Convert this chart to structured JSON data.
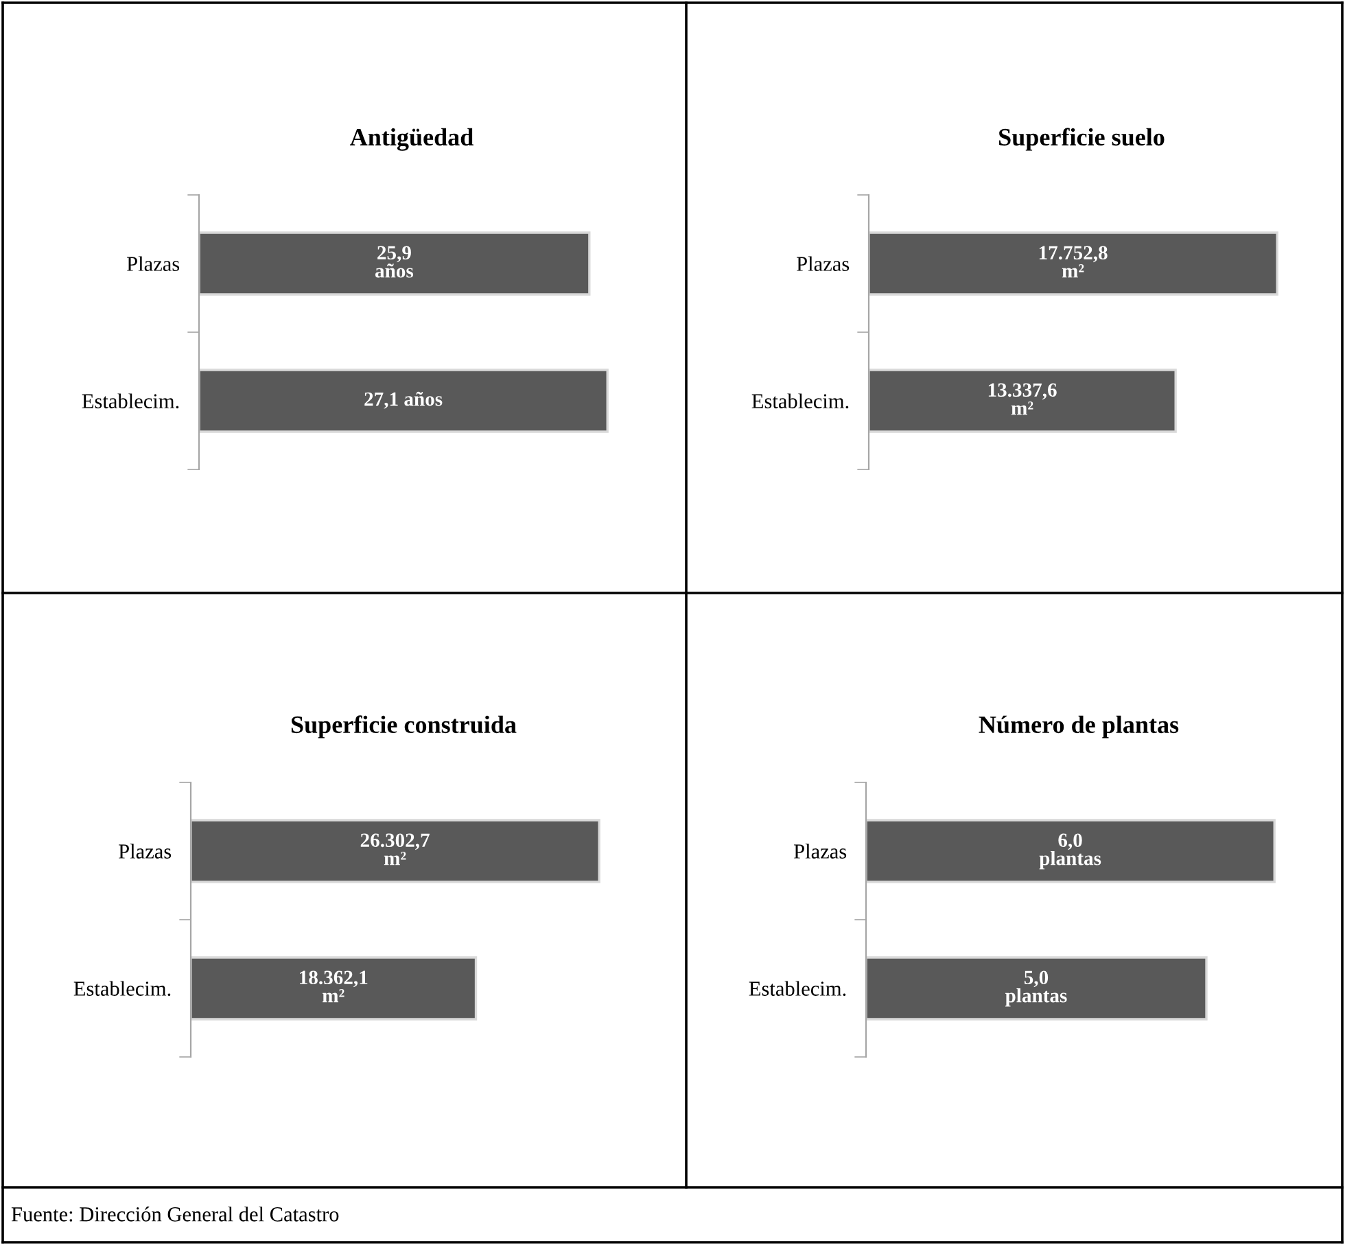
{
  "chart_data": [
    {
      "type": "bar",
      "orientation": "horizontal",
      "title": "Antigüedad",
      "categories": [
        "Plazas",
        "Establecim."
      ],
      "values": [
        25.9,
        27.1
      ],
      "color": "#595959",
      "value_labels": [
        "25,9\naños",
        "27,1 años"
      ]
    },
    {
      "type": "bar",
      "orientation": "horizontal",
      "title": "Superficie suelo",
      "categories": [
        "Plazas",
        "Establecim."
      ],
      "values": [
        17752.8,
        13337.6
      ],
      "color": "#595959",
      "value_labels": [
        "17.752,8\nm²",
        "13.337,6\nm²"
      ]
    },
    {
      "type": "bar",
      "orientation": "horizontal",
      "title": "Superficie construida",
      "categories": [
        "Plazas",
        "Establecim."
      ],
      "values": [
        26302.7,
        18362.1
      ],
      "color": "#595959",
      "value_labels": [
        "26.302,7\nm²",
        "18.362,1\nm²"
      ]
    },
    {
      "type": "bar",
      "orientation": "horizontal",
      "title": "Número de plantas",
      "categories": [
        "Plazas",
        "Establecim."
      ],
      "values": [
        6.0,
        5.0
      ],
      "color": "#595959",
      "value_labels": [
        "6,0\nplantas",
        "5,0\nplantas"
      ],
      "annotations": [
        "Fuente: Dirección General del Catastro"
      ]
    }
  ]
}
